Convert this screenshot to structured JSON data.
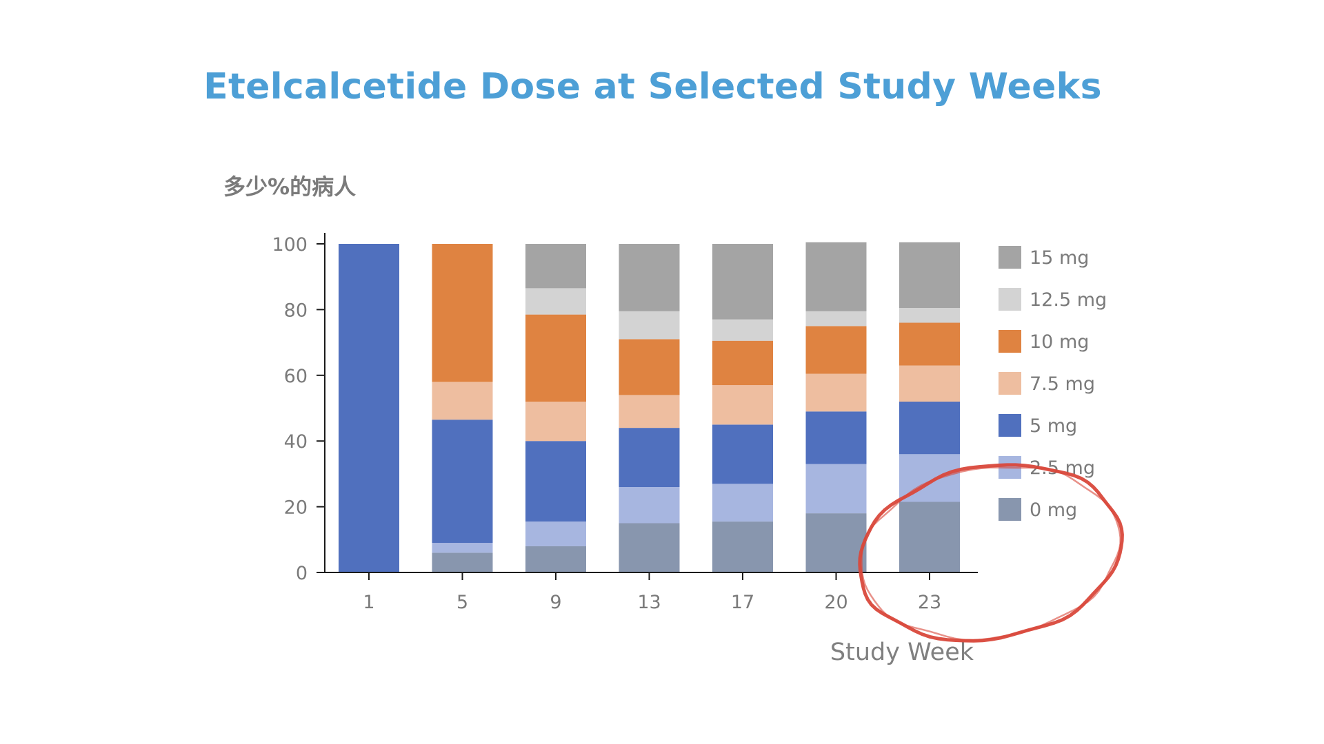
{
  "chart_data": {
    "type": "bar",
    "stacked": true,
    "title": "Etelcalcetide Dose at Selected Study Weeks",
    "xlabel": "Study Week",
    "ylabel": "多少%的病人",
    "ylim": [
      0,
      100
    ],
    "yticks": [
      0,
      20,
      40,
      60,
      80,
      100
    ],
    "categories": [
      "1",
      "5",
      "9",
      "13",
      "17",
      "20",
      "23"
    ],
    "legend_position": "right",
    "grid": false,
    "series": [
      {
        "name": "0 mg",
        "color": "#8896ae",
        "values": [
          0,
          6,
          8,
          15,
          15.5,
          18,
          21.5
        ]
      },
      {
        "name": "2.5 mg",
        "color": "#a7b6e0",
        "values": [
          0,
          3,
          7.5,
          11,
          11.5,
          15,
          14.5
        ]
      },
      {
        "name": "5 mg",
        "color": "#5070be",
        "values": [
          100,
          37.5,
          24.5,
          18,
          18,
          16,
          16
        ]
      },
      {
        "name": "7.5 mg",
        "color": "#eebea0",
        "values": [
          0,
          11.5,
          12,
          10,
          12,
          11.5,
          11
        ]
      },
      {
        "name": "10 mg",
        "color": "#df8341",
        "values": [
          0,
          42,
          26.5,
          17,
          13.5,
          14.5,
          13
        ]
      },
      {
        "name": "12.5 mg",
        "color": "#d3d3d3",
        "values": [
          0,
          0,
          8,
          8.5,
          6.5,
          4.5,
          4.5
        ]
      },
      {
        "name": "15 mg",
        "color": "#a4a4a4",
        "values": [
          0,
          0,
          13.5,
          20.5,
          23,
          21,
          20
        ]
      }
    ]
  },
  "annotations": {
    "circle_color": "#d9483b",
    "circle_target": "23"
  }
}
